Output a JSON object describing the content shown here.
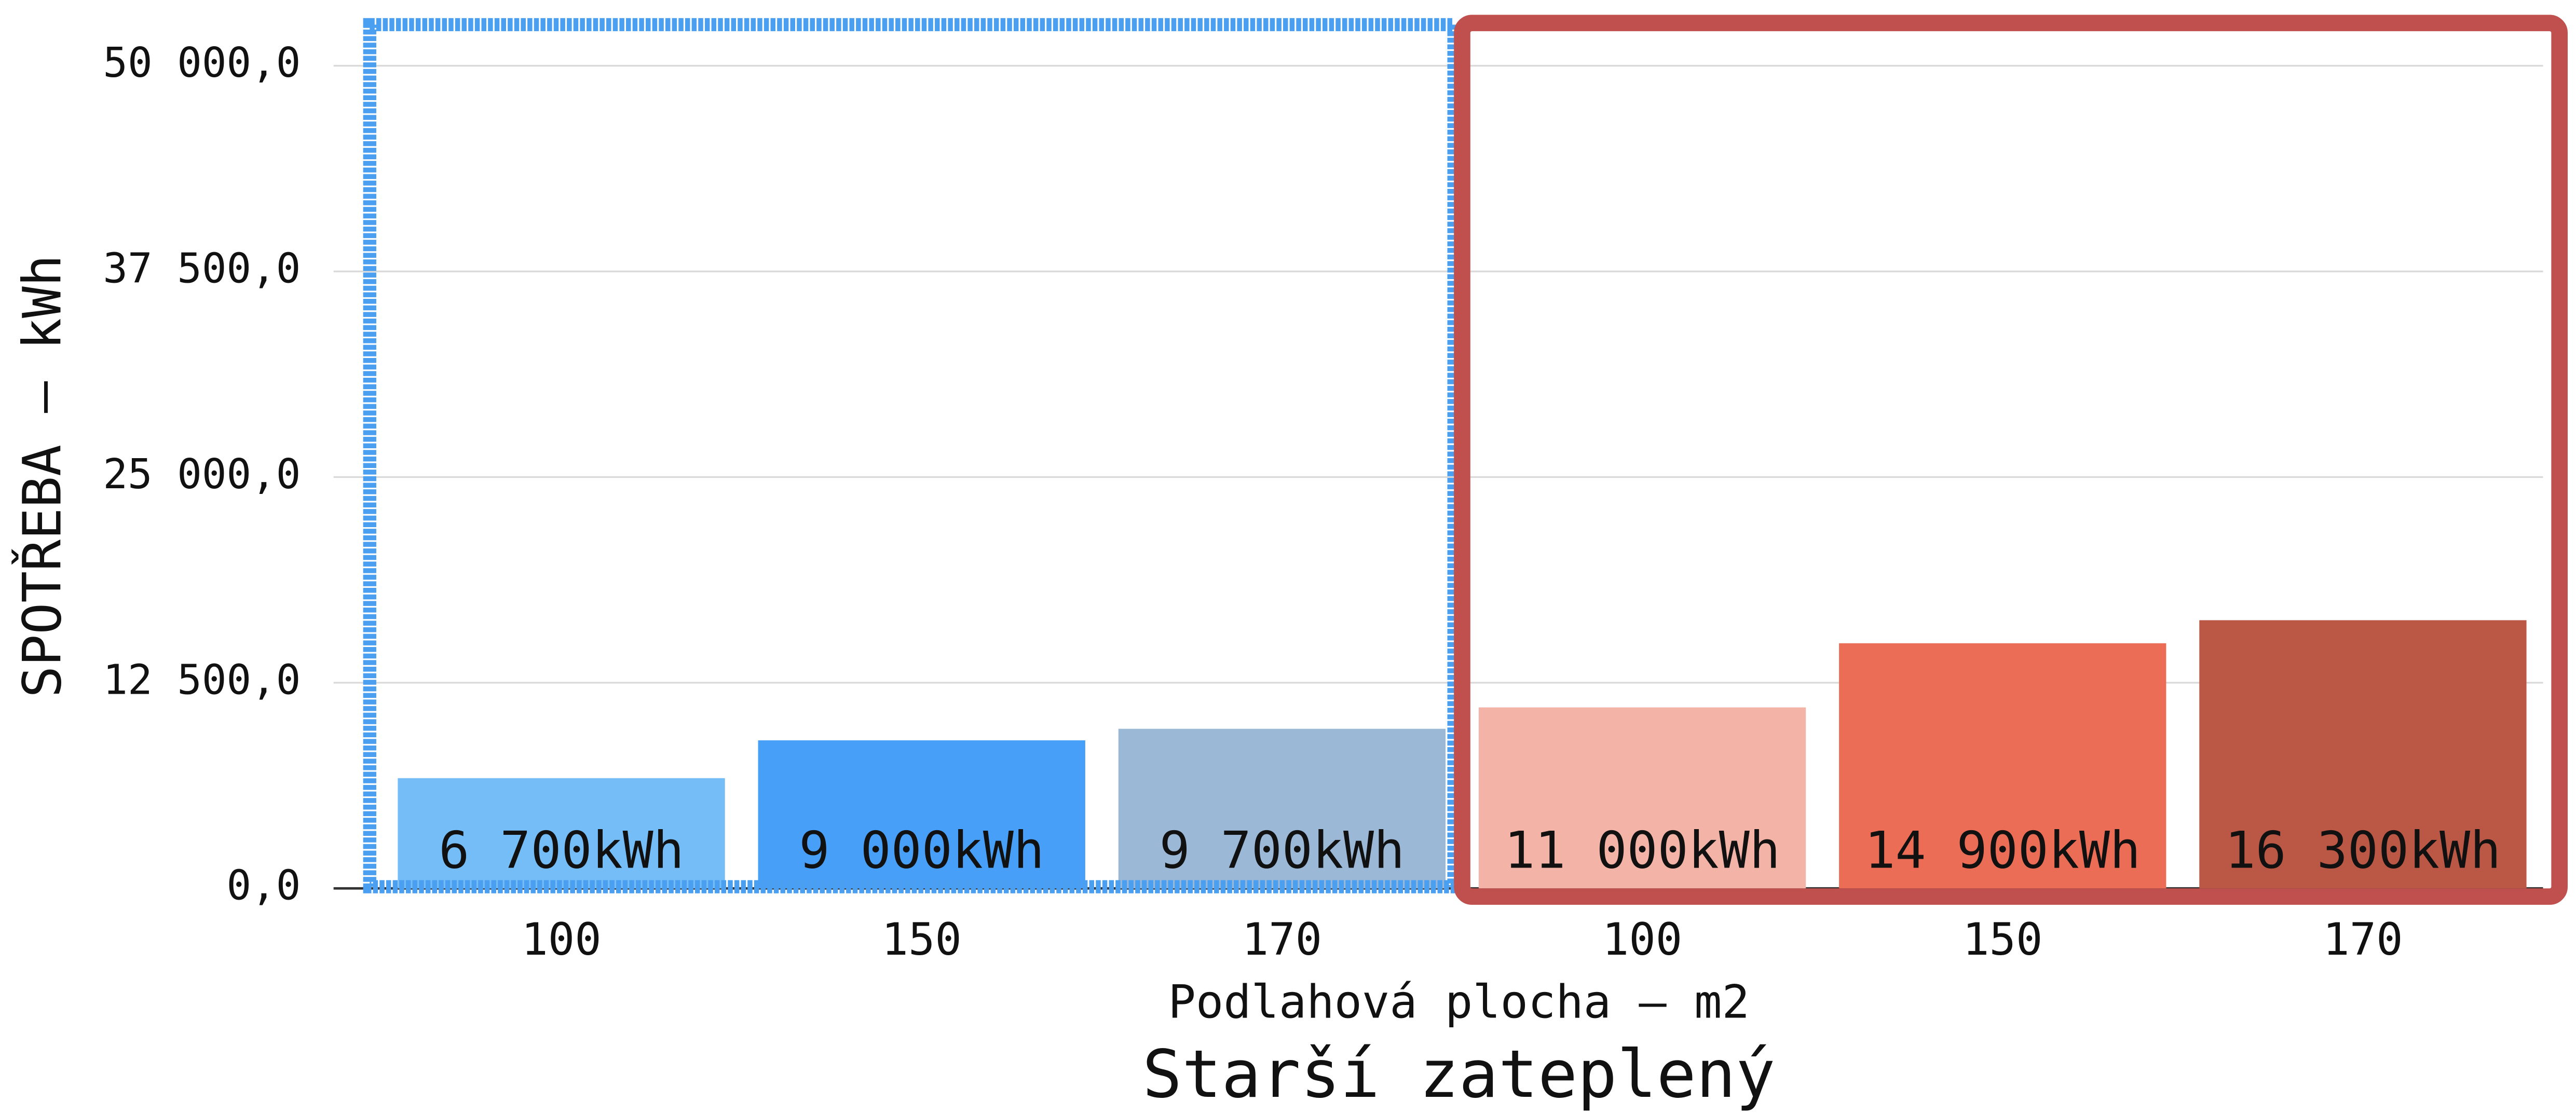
{
  "chart_data": {
    "type": "bar",
    "title": "Starší zateplený",
    "x_label": "Podlahová plocha – m2",
    "y_label": "SPOTŘEBA – kWh",
    "categories": [
      "100",
      "150",
      "170",
      "100",
      "150",
      "170"
    ],
    "values": [
      6700,
      9000,
      9700,
      11000,
      14900,
      16300
    ],
    "value_labels": [
      "6 700kWh",
      "9 000kWh",
      "9 700kWh",
      "11 000kWh",
      "14 900kWh",
      "16 300kWh"
    ],
    "colors": [
      "#74bdf7",
      "#479ff8",
      "#9bb8d7",
      "#f3b4a7",
      "#ec6d56",
      "#bb5745"
    ],
    "ylim": [
      0,
      52500
    ],
    "yticks": [
      {
        "value": 0,
        "label": "0,0"
      },
      {
        "value": 12500,
        "label": "12 500,0"
      },
      {
        "value": 25000,
        "label": "25 000,0"
      },
      {
        "value": 37500,
        "label": "37 500,0"
      },
      {
        "value": 50000,
        "label": "50 000,0"
      }
    ],
    "grid": true
  }
}
